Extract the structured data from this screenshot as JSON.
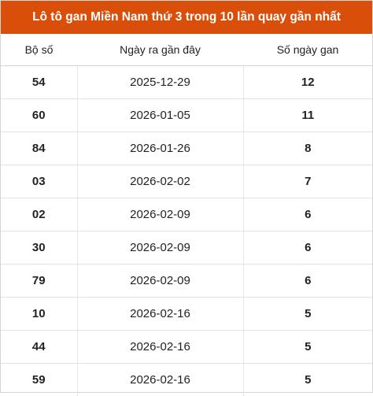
{
  "title": "Lô tô gan Miền Nam thứ 3 trong 10 lần quay gần nhất",
  "table": {
    "headers": [
      "Bộ số",
      "Ngày ra gần đây",
      "Số ngày gan"
    ],
    "rows": [
      {
        "number": "54",
        "date": "2025-12-29",
        "days": "12"
      },
      {
        "number": "60",
        "date": "2026-01-05",
        "days": "11"
      },
      {
        "number": "84",
        "date": "2026-01-26",
        "days": "8"
      },
      {
        "number": "03",
        "date": "2026-02-02",
        "days": "7"
      },
      {
        "number": "02",
        "date": "2026-02-09",
        "days": "6"
      },
      {
        "number": "30",
        "date": "2026-02-09",
        "days": "6"
      },
      {
        "number": "79",
        "date": "2026-02-09",
        "days": "6"
      },
      {
        "number": "10",
        "date": "2026-02-16",
        "days": "5"
      },
      {
        "number": "44",
        "date": "2026-02-16",
        "days": "5"
      },
      {
        "number": "59",
        "date": "2026-02-16",
        "days": "5"
      }
    ]
  },
  "colors": {
    "accent": "#d94f0a",
    "border": "#d5d5d5"
  }
}
